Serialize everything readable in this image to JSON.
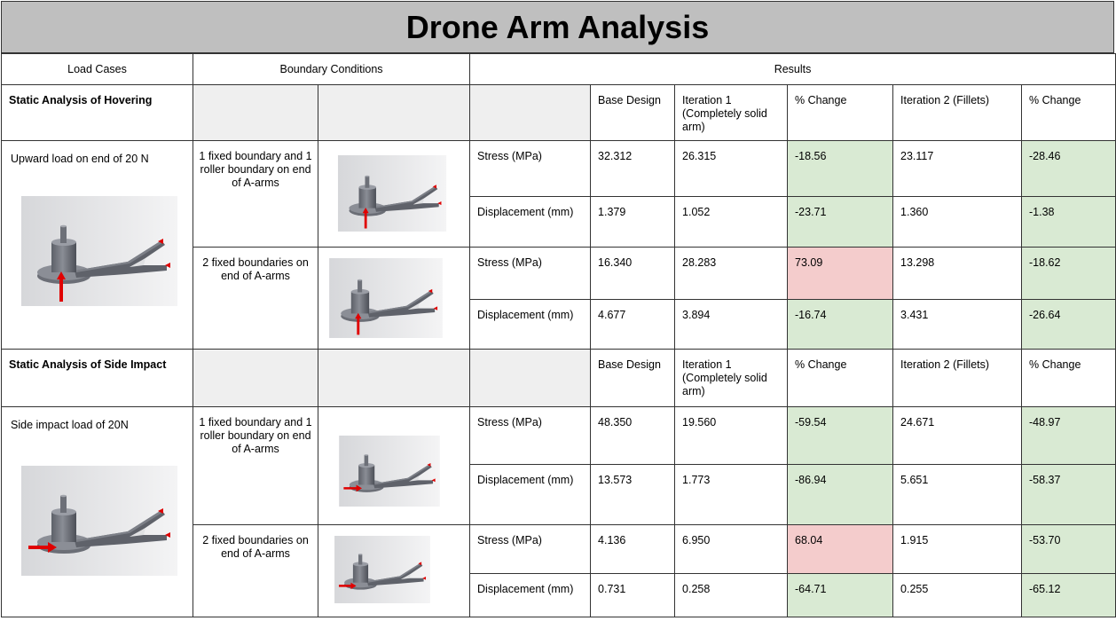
{
  "title": "Drone Arm Analysis",
  "headers": {
    "load_cases": "Load Cases",
    "boundary_conditions": "Boundary Conditions",
    "results": "Results"
  },
  "sections": [
    {
      "title": "Static Analysis of Hovering",
      "col_headers": [
        "Base Design",
        "Iteration 1 (Completely solid arm)",
        "% Change",
        "Iteration 2 (Fillets)",
        "% Change"
      ],
      "load_case": "Upward load on end of 20 N",
      "boundaries": [
        {
          "label": "1 fixed boundary and 1 roller boundary on end of A-arms",
          "rows": [
            {
              "metric": "Stress (MPa)",
              "base": "32.312",
              "it1": "26.315",
              "chg1": "-18.56",
              "it2": "23.117",
              "chg2": "-28.46"
            },
            {
              "metric": "Displacement (mm)",
              "base": "1.379",
              "it1": "1.052",
              "chg1": "-23.71",
              "it2": "1.360",
              "chg2": "-1.38"
            }
          ]
        },
        {
          "label": "2 fixed boundaries on end of A-arms",
          "rows": [
            {
              "metric": "Stress (MPa)",
              "base": "16.340",
              "it1": "28.283",
              "chg1": "73.09",
              "it2": "13.298",
              "chg2": "-18.62"
            },
            {
              "metric": "Displacement (mm)",
              "base": "4.677",
              "it1": "3.894",
              "chg1": "-16.74",
              "it2": "3.431",
              "chg2": "-26.64"
            }
          ]
        }
      ]
    },
    {
      "title": "Static Analysis of Side Impact",
      "col_headers": [
        "Base Design",
        "Iteration 1 (Completely solid arm)",
        "% Change",
        "Iteration 2 (Fillets)",
        "% Change"
      ],
      "load_case": "Side impact load of 20N",
      "boundaries": [
        {
          "label": "1 fixed boundary and 1 roller boundary on end of A-arms",
          "rows": [
            {
              "metric": "Stress (MPa)",
              "base": "48.350",
              "it1": "19.560",
              "chg1": "-59.54",
              "it2": "24.671",
              "chg2": "-48.97"
            },
            {
              "metric": "Displacement (mm)",
              "base": "13.573",
              "it1": "1.773",
              "chg1": "-86.94",
              "it2": "5.651",
              "chg2": "-58.37"
            }
          ]
        },
        {
          "label": "2 fixed boundaries on end of A-arms",
          "rows": [
            {
              "metric": "Stress (MPa)",
              "base": "4.136",
              "it1": "6.950",
              "chg1": "68.04",
              "it2": "1.915",
              "chg2": "-53.70"
            },
            {
              "metric": "Displacement (mm)",
              "base": "0.731",
              "it1": "0.258",
              "chg1": "-64.71",
              "it2": "0.255",
              "chg2": "-65.12"
            }
          ]
        }
      ]
    }
  ],
  "colors": {
    "improved": "#d9ead3",
    "worse": "#f4cccc",
    "title_bar": "#bfbfbf",
    "grey_cell": "#efefef",
    "arrow": "#e00000"
  }
}
